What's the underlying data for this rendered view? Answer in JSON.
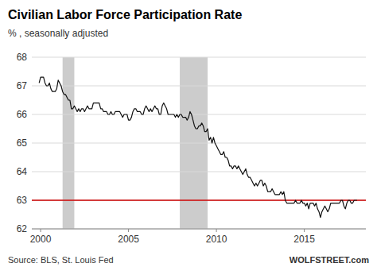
{
  "chart_data": {
    "type": "line",
    "title": "Civilian Labor Force Participation Rate",
    "subtitle": "% , seasonally adjusted",
    "annotations": [
      "Source: BLS, St. Louis Fed",
      "WOLFSTREET.com"
    ],
    "xlim": [
      1999.5,
      2018.5
    ],
    "ylim": [
      62,
      68
    ],
    "yticks": [
      62,
      63,
      64,
      65,
      66,
      67,
      68
    ],
    "xticks": [
      2000,
      2005,
      2010,
      2015
    ],
    "grid": true,
    "color": "#111111",
    "hline": {
      "value": 63.0,
      "color": "#cc0000"
    },
    "bands": [
      {
        "start": 2001.25,
        "end": 2001.917,
        "color": "#cccccc"
      },
      {
        "start": 2007.917,
        "end": 2009.5,
        "color": "#cccccc"
      }
    ],
    "x": [
      1999.917,
      2000.0,
      2000.083,
      2000.167,
      2000.25,
      2000.333,
      2000.417,
      2000.5,
      2000.583,
      2000.667,
      2000.75,
      2000.833,
      2000.917,
      2001.0,
      2001.083,
      2001.167,
      2001.25,
      2001.333,
      2001.417,
      2001.5,
      2001.583,
      2001.667,
      2001.75,
      2001.833,
      2001.917,
      2002.0,
      2002.083,
      2002.167,
      2002.25,
      2002.333,
      2002.417,
      2002.5,
      2002.583,
      2002.667,
      2002.75,
      2002.833,
      2002.917,
      2003.0,
      2003.083,
      2003.167,
      2003.25,
      2003.333,
      2003.417,
      2003.5,
      2003.583,
      2003.667,
      2003.75,
      2003.833,
      2003.917,
      2004.0,
      2004.083,
      2004.167,
      2004.25,
      2004.333,
      2004.417,
      2004.5,
      2004.583,
      2004.667,
      2004.75,
      2004.833,
      2004.917,
      2005.0,
      2005.083,
      2005.167,
      2005.25,
      2005.333,
      2005.417,
      2005.5,
      2005.583,
      2005.667,
      2005.75,
      2005.833,
      2005.917,
      2006.0,
      2006.083,
      2006.167,
      2006.25,
      2006.333,
      2006.417,
      2006.5,
      2006.583,
      2006.667,
      2006.75,
      2006.833,
      2006.917,
      2007.0,
      2007.083,
      2007.167,
      2007.25,
      2007.333,
      2007.417,
      2007.5,
      2007.583,
      2007.667,
      2007.75,
      2007.833,
      2007.917,
      2008.0,
      2008.083,
      2008.167,
      2008.25,
      2008.333,
      2008.417,
      2008.5,
      2008.583,
      2008.667,
      2008.75,
      2008.833,
      2008.917,
      2009.0,
      2009.083,
      2009.167,
      2009.25,
      2009.333,
      2009.417,
      2009.5,
      2009.583,
      2009.667,
      2009.75,
      2009.833,
      2009.917,
      2010.0,
      2010.083,
      2010.167,
      2010.25,
      2010.333,
      2010.417,
      2010.5,
      2010.583,
      2010.667,
      2010.75,
      2010.833,
      2010.917,
      2011.0,
      2011.083,
      2011.167,
      2011.25,
      2011.333,
      2011.417,
      2011.5,
      2011.583,
      2011.667,
      2011.75,
      2011.833,
      2011.917,
      2012.0,
      2012.083,
      2012.167,
      2012.25,
      2012.333,
      2012.417,
      2012.5,
      2012.583,
      2012.667,
      2012.75,
      2012.833,
      2012.917,
      2013.0,
      2013.083,
      2013.167,
      2013.25,
      2013.333,
      2013.417,
      2013.5,
      2013.583,
      2013.667,
      2013.75,
      2013.833,
      2013.917,
      2014.0,
      2014.083,
      2014.167,
      2014.25,
      2014.333,
      2014.417,
      2014.5,
      2014.583,
      2014.667,
      2014.75,
      2014.833,
      2014.917,
      2015.0,
      2015.083,
      2015.167,
      2015.25,
      2015.333,
      2015.417,
      2015.5,
      2015.583,
      2015.667,
      2015.75,
      2015.833,
      2015.917,
      2016.0,
      2016.083,
      2016.167,
      2016.25,
      2016.333,
      2016.417,
      2016.5,
      2016.583,
      2016.667,
      2016.75,
      2016.833,
      2016.917,
      2017.0,
      2017.083,
      2017.167,
      2017.25,
      2017.333,
      2017.417,
      2017.5,
      2017.583,
      2017.667,
      2017.75,
      2017.833,
      2017.917,
      2018.0
    ],
    "values": [
      67.1,
      67.3,
      67.3,
      67.3,
      67.1,
      67.0,
      67.0,
      67.1,
      66.9,
      66.8,
      66.8,
      66.8,
      66.9,
      67.2,
      67.1,
      67.0,
      66.8,
      66.7,
      66.7,
      66.6,
      66.5,
      66.5,
      66.2,
      66.2,
      66.3,
      66.2,
      66.1,
      66.2,
      66.1,
      66.2,
      66.2,
      66.1,
      66.2,
      66.3,
      66.2,
      66.2,
      66.2,
      66.4,
      66.4,
      66.4,
      66.4,
      66.4,
      66.2,
      66.2,
      66.1,
      66.1,
      66.1,
      66.0,
      66.0,
      66.1,
      66.0,
      66.0,
      66.1,
      66.1,
      66.1,
      66.1,
      66.0,
      65.9,
      66.0,
      66.0,
      66.0,
      65.8,
      65.8,
      65.9,
      66.1,
      66.2,
      66.2,
      66.1,
      66.1,
      66.1,
      66.0,
      66.0,
      66.2,
      66.3,
      66.2,
      66.1,
      66.2,
      66.1,
      66.2,
      66.3,
      66.2,
      66.2,
      66.0,
      66.0,
      66.3,
      66.4,
      66.3,
      66.2,
      66.0,
      66.0,
      66.0,
      66.0,
      66.0,
      65.9,
      66.0,
      65.9,
      66.0,
      66.0,
      65.9,
      65.9,
      65.9,
      65.8,
      65.9,
      66.1,
      66.0,
      65.8,
      65.6,
      65.5,
      65.5,
      65.6,
      65.6,
      65.7,
      65.6,
      65.4,
      65.4,
      65.5,
      65.1,
      65.2,
      65.0,
      65.2,
      65.0,
      64.9,
      64.8,
      64.7,
      64.6,
      64.6,
      64.7,
      64.5,
      64.5,
      64.4,
      64.2,
      64.2,
      64.1,
      64.2,
      64.2,
      64.1,
      64.2,
      64.1,
      64.0,
      63.9,
      64.0,
      64.1,
      63.9,
      63.8,
      63.8,
      63.7,
      63.6,
      63.5,
      63.6,
      63.5,
      63.6,
      63.7,
      63.7,
      63.5,
      63.6,
      63.5,
      63.3,
      63.3,
      63.3,
      63.4,
      63.3,
      63.2,
      63.2,
      63.2,
      63.2,
      63.3,
      63.2,
      63.3,
      63.0,
      62.9,
      62.9,
      62.9,
      62.9,
      62.9,
      62.9,
      63.0,
      62.9,
      62.9,
      62.9,
      63.0,
      62.9,
      62.9,
      62.8,
      62.9,
      62.7,
      62.9,
      62.9,
      62.9,
      62.8,
      62.9,
      62.7,
      62.6,
      62.4,
      62.6,
      62.7,
      62.8,
      62.7,
      62.6,
      62.7,
      62.9,
      62.9,
      62.9,
      62.9,
      62.9,
      62.9,
      62.9,
      63.0,
      63.0,
      62.8,
      62.7,
      62.9,
      63.0,
      63.0,
      62.9,
      62.9,
      63.0,
      63.0,
      63.0
    ]
  }
}
